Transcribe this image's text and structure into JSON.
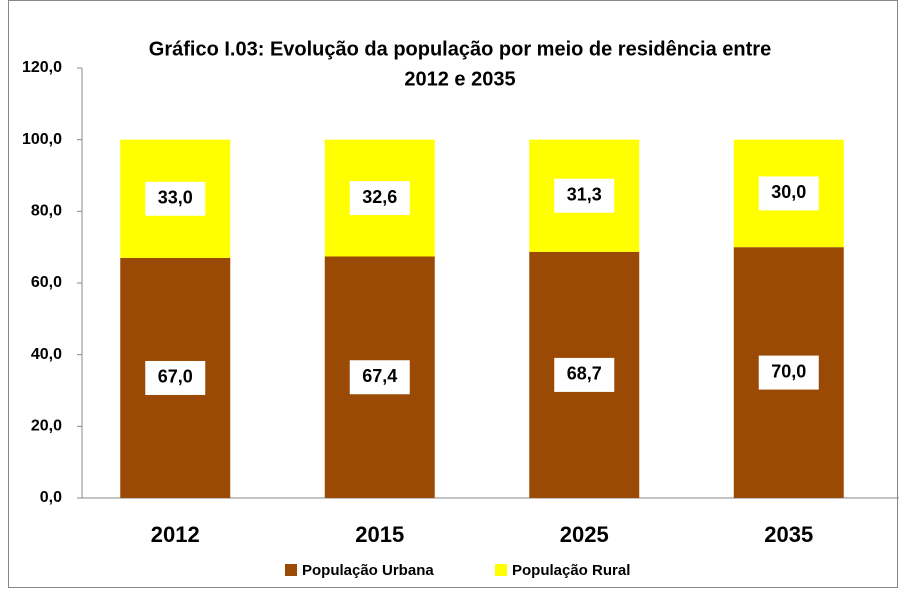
{
  "chart_data": {
    "type": "stacked_bar",
    "title": [
      "Gráfico I.03: Evolução da população por meio de residência entre",
      "2012 e 2035"
    ],
    "categories": [
      "2012",
      "2015",
      "2025",
      "2035"
    ],
    "series": [
      {
        "name": "População Urbana",
        "color": "#9a4a05",
        "values": [
          67.0,
          67.4,
          68.7,
          70.0
        ],
        "value_labels": [
          "67,0",
          "67,4",
          "68,7",
          "70,0"
        ]
      },
      {
        "name": "População Rural",
        "color": "#ffff00",
        "values": [
          33.0,
          32.6,
          31.3,
          30.0
        ],
        "value_labels": [
          "33,0",
          "32,6",
          "31,3",
          "30,0"
        ]
      }
    ],
    "ylim": [
      0,
      120
    ],
    "yticks": [
      {
        "value": 0,
        "label": "0,0"
      },
      {
        "value": 20,
        "label": "20,0"
      },
      {
        "value": 40,
        "label": "40,0"
      },
      {
        "value": 60,
        "label": "60,0"
      },
      {
        "value": 80,
        "label": "80,0"
      },
      {
        "value": 100,
        "label": "100,0"
      },
      {
        "value": 120,
        "label": "120,0"
      }
    ],
    "legend": "bottom"
  }
}
